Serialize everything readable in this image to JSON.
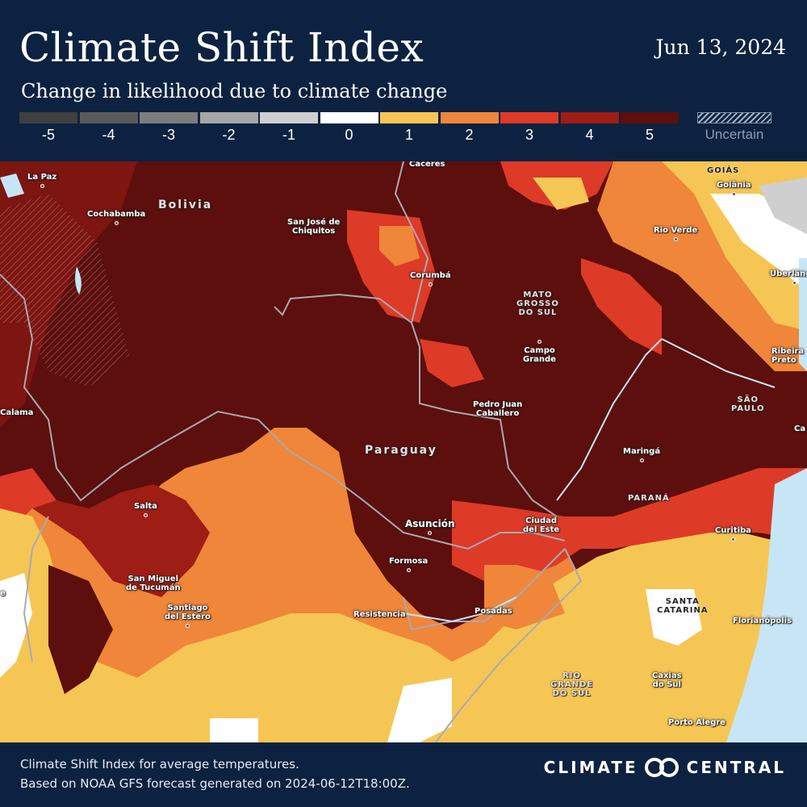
{
  "header": {
    "title": "Climate Shift Index",
    "date": "Jun 13, 2024",
    "subtitle": "Change in likelihood due to climate change"
  },
  "legend": {
    "items": [
      {
        "label": "-5",
        "color": "#404040"
      },
      {
        "label": "-4",
        "color": "#5a5a5a"
      },
      {
        "label": "-3",
        "color": "#7c7c7c"
      },
      {
        "label": "-2",
        "color": "#a6a6a6"
      },
      {
        "label": "-1",
        "color": "#cfcfcf"
      },
      {
        "label": "0",
        "color": "#ffffff"
      },
      {
        "label": "1",
        "color": "#f6c654"
      },
      {
        "label": "2",
        "color": "#ef8639"
      },
      {
        "label": "3",
        "color": "#dd3a28"
      },
      {
        "label": "4",
        "color": "#9e1d15"
      },
      {
        "label": "5",
        "color": "#5c0f0c"
      }
    ],
    "uncertain_label": "Uncertain"
  },
  "map": {
    "countries": {
      "bolivia": "Bolivia",
      "paraguay": "Paraguay"
    },
    "regions": {
      "goias": "GOIÁS",
      "mato_grosso_do_sul": "MATO\nGROSSO\nDO SUL",
      "sao_paulo": "SÃO\nPAULO",
      "parana": "PARANÁ",
      "santa_catarina": "SANTA\nCATARINA",
      "rio_grande_do_sul": "RIO\nGRANDE\nDO SUL"
    },
    "cities": {
      "la_paz": "La Paz",
      "cochabamba": "Cochabamba",
      "san_jose": "San José de\nChiquitos",
      "caceres": "Cáceres",
      "goiania": "Goiânia",
      "rio_verde": "Rio Verde",
      "uberlandia": "Uberlândia",
      "corumba": "Corumbá",
      "campo_grande": "Campo\nGrande",
      "ribeirao_preto": "Ribeira\nPreto",
      "calama": "Calama",
      "pedro_juan": "Pedro Juan\nCaballero",
      "maringa": "Maringá",
      "salta": "Salta",
      "asuncion": "Asunción",
      "ciudad_del_este": "Ciudad\ndel Este",
      "curitiba": "Curitiba",
      "formosa": "Formosa",
      "san_miguel": "San Miguel\nde Tucumán",
      "santiago": "Santiago\ndel Estero",
      "resistencia": "Resistencia",
      "posadas": "Posadas",
      "florianopolis": "Florianópolis",
      "caxias": "Caxias\ndo Sul",
      "porto_alegre": "Porto Alegre",
      "ca": "Ca",
      "e": "e"
    }
  },
  "footer": {
    "line1": "Climate Shift Index for average temperatures.",
    "line2": "Based on NOAA GFS forecast generated on 2024-06-12T18:00Z.",
    "brand_left": "CLIMATE",
    "brand_right": "CENTRAL"
  }
}
